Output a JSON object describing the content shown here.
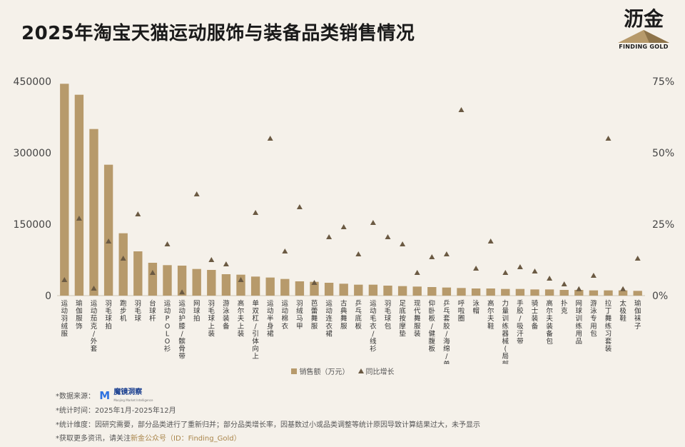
{
  "title": "2025年淘宝天猫运动服饰与装备品类销售情况",
  "logo": {
    "text": "沥金",
    "sub": "FINDING GOLD"
  },
  "colors": {
    "bar": "#b79a6b",
    "marker": "#6b5a43",
    "accent": "#a9854a",
    "background": "#f5f1ea"
  },
  "chart_data": {
    "type": "bar",
    "title": "2025年淘宝天猫运动服饰与装备品类销售情况",
    "categories": [
      "运动羽绒服",
      "瑜伽服饰",
      "运动茄克/外套",
      "羽毛球拍",
      "跑步机",
      "羽毛球",
      "台球杆",
      "运动POLO衫",
      "运动护膝/髌骨带",
      "网球拍",
      "羽毛球上装",
      "游泳装备",
      "高尔夫上装",
      "单双杠/引体向上",
      "运动半身裙",
      "运动棉衣",
      "羽绒马甲",
      "芭蕾舞服",
      "运动连衣裙",
      "古典舞服",
      "乒乓底板",
      "运动毛衣/线衫",
      "羽毛球包",
      "足底按摩垫",
      "现代舞服装",
      "仰卧板/健腹板",
      "乒乓套胶/海绵/单胶片",
      "呼啦圈",
      "泳帽",
      "高尔夫鞋",
      "力量训练器械(局部型)",
      "手胶/吸汗带",
      "骑士装备",
      "高尔夫装备包",
      "扑克",
      "网球训练用品",
      "游泳专用包",
      "拉丁舞练习套装",
      "太极鞋",
      "瑜伽袜子"
    ],
    "series": [
      {
        "name": "销售额（万元）",
        "type": "bar",
        "axis": "left",
        "values": [
          445000,
          422000,
          350000,
          275000,
          131000,
          93000,
          69000,
          64000,
          63000,
          56000,
          54000,
          45000,
          44000,
          40000,
          38000,
          35000,
          30000,
          29000,
          27000,
          25000,
          23000,
          23000,
          21000,
          20000,
          19000,
          18000,
          17000,
          16000,
          15000,
          15000,
          14000,
          14000,
          13000,
          13000,
          12000,
          12000,
          11000,
          11000,
          11000,
          10000
        ]
      },
      {
        "name": "同比增长",
        "type": "scatter",
        "axis": "right",
        "values": [
          5.5,
          27,
          2.5,
          19,
          13,
          28.5,
          8,
          18,
          1.2,
          35.5,
          12.5,
          11,
          5.5,
          29,
          55,
          15.5,
          31,
          4.5,
          20.5,
          24,
          14.5,
          25.5,
          20.5,
          18,
          8,
          13.5,
          14.5,
          65,
          9.5,
          19,
          8,
          10,
          8.5,
          6,
          4,
          2.3,
          7,
          55,
          2.3,
          13
        ]
      }
    ],
    "y_left": {
      "min": 0,
      "max": 450000,
      "ticks": [
        "0",
        "150000",
        "300000",
        "450000"
      ]
    },
    "y_right": {
      "min": 0,
      "max": 75,
      "ticks": [
        "0%",
        "25%",
        "50%",
        "75%"
      ]
    },
    "grid": false,
    "legend": "bottom-center"
  },
  "legend": {
    "bar_label": "销售额（万元）",
    "marker_label": "同比增长"
  },
  "footer": {
    "source_label": "*数据来源：",
    "source_name": "魔镜洞察",
    "source_sub": "Moojing Market Intelligence",
    "period": "*统计时间：2025年1月-2025年12月",
    "dimension": "*统计维度：因研究需要，部分品类进行了重新归并；部分品类增长率，因基数过小或品类调整等统计原因导致计算结果过大，未予显示",
    "more_prefix": "*获取更多资讯，请关注",
    "more_highlight": "新金公众号（ID：Finding_Gold）"
  }
}
